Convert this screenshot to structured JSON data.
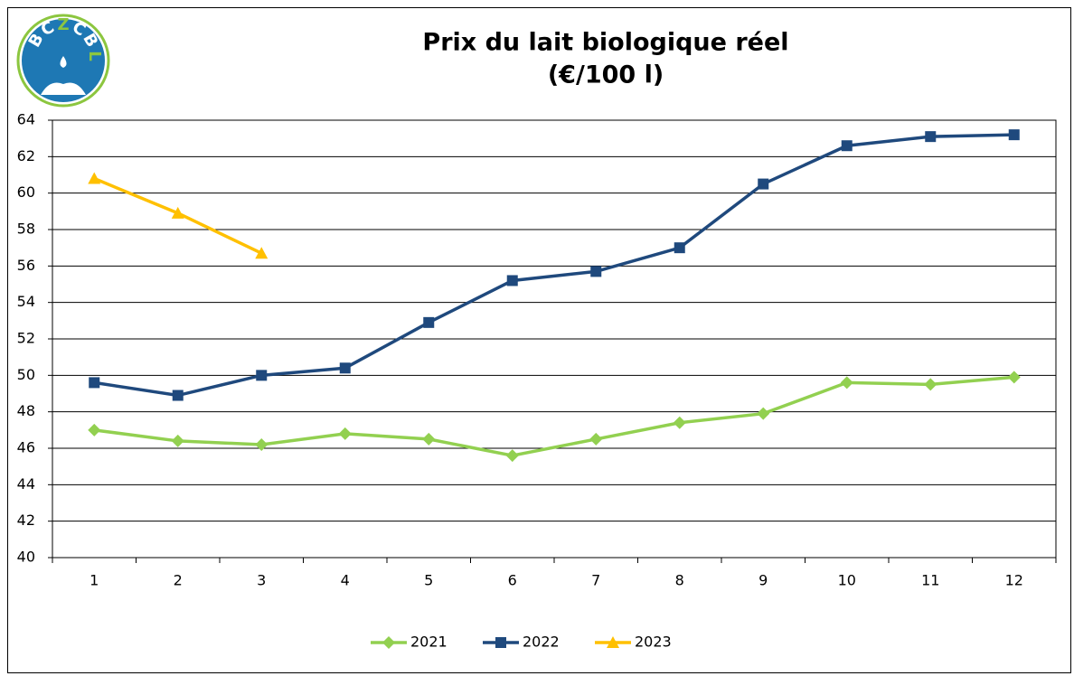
{
  "chart_data": {
    "type": "line",
    "title": "Prix du lait biologique réel",
    "subtitle": "(€/100 l)",
    "logo_letters": [
      "B",
      "C",
      "Z",
      "C",
      "B",
      "L"
    ],
    "categories": [
      "1",
      "2",
      "3",
      "4",
      "5",
      "6",
      "7",
      "8",
      "9",
      "10",
      "11",
      "12"
    ],
    "series": [
      {
        "name": "2021",
        "color": "#92d050",
        "marker": "diamond",
        "values": [
          47.0,
          46.4,
          46.2,
          46.8,
          46.5,
          45.6,
          46.5,
          47.4,
          47.9,
          49.6,
          49.5,
          49.9
        ]
      },
      {
        "name": "2022",
        "color": "#1f497d",
        "marker": "square",
        "values": [
          49.6,
          48.9,
          50.0,
          50.4,
          52.9,
          55.2,
          55.7,
          57.0,
          60.5,
          62.6,
          63.1,
          63.2
        ]
      },
      {
        "name": "2023",
        "color": "#ffc000",
        "marker": "triangle",
        "values": [
          60.8,
          58.9,
          56.7,
          null,
          null,
          null,
          null,
          null,
          null,
          null,
          null,
          null
        ]
      }
    ],
    "ylim": [
      40,
      64
    ],
    "yticks": [
      40,
      42,
      44,
      46,
      48,
      50,
      52,
      54,
      56,
      58,
      60,
      62,
      64
    ],
    "grid": true,
    "legend": "bottom"
  }
}
